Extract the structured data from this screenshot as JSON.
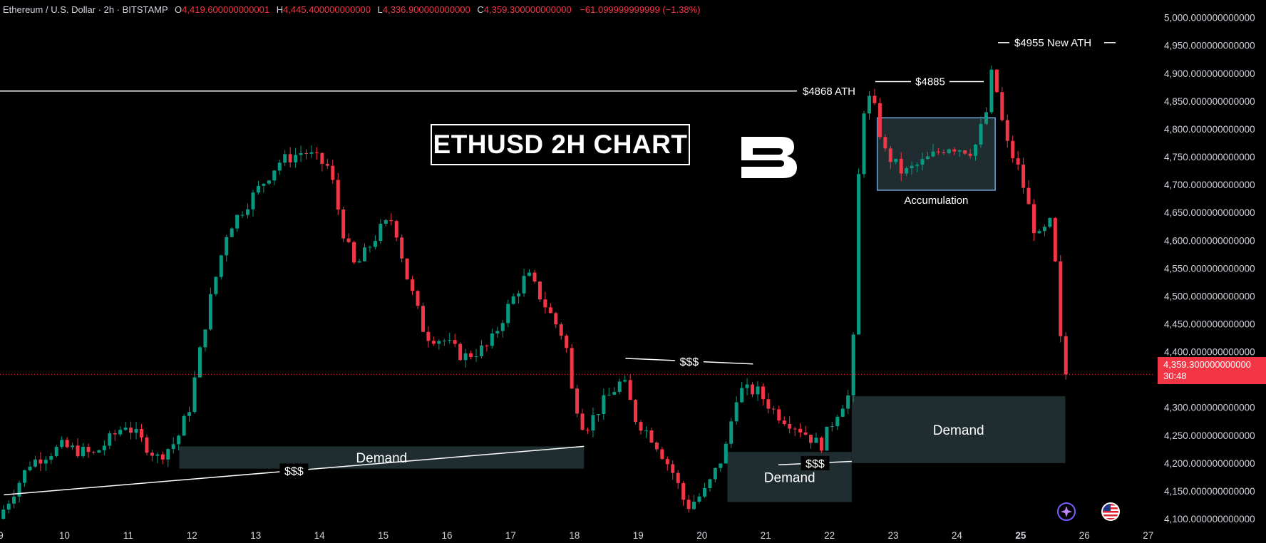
{
  "header": {
    "symbol": "Ethereum / U.S. Dollar · 2h · BITSTAMP",
    "o_label": "O",
    "o": "4,419.600000000001",
    "h_label": "H",
    "h": "4,445.400000000000",
    "l_label": "L",
    "l": "4,336.900000000000",
    "c_label": "C",
    "c": "4,359.300000000000",
    "change": "−61.099999999999 (−1.38%)"
  },
  "title": "ETHUSD 2H CHART",
  "price_tag": {
    "price": "4,359.300000000000",
    "timer": "30:48"
  },
  "colors": {
    "up": "#089981",
    "down": "#f23645",
    "zone": "#1f2c30",
    "accum_border": "#6fa8dc"
  },
  "icons": [
    "brand-b-logo-icon",
    "sparkle-icon",
    "us-flag-icon"
  ],
  "chart_data": {
    "type": "candlestick",
    "title": "ETHUSD 2H CHART",
    "ylim": [
      4080,
      5000
    ],
    "y_ticks": [
      "4,100.000000000000",
      "4,150.000000000000",
      "4,200.000000000000",
      "4,250.000000000000",
      "4,300.000000000000",
      "4,350.000000000000",
      "4,400.000000000000",
      "4,450.000000000000",
      "4,500.000000000000",
      "4,550.000000000000",
      "4,600.000000000000",
      "4,650.000000000000",
      "4,700.000000000000",
      "4,750.000000000000",
      "4,800.000000000000",
      "4,850.000000000000",
      "4,900.000000000000",
      "4,950.000000000000",
      "5,000.000000000000"
    ],
    "x_ticks": [
      "9",
      "10",
      "11",
      "12",
      "13",
      "14",
      "15",
      "16",
      "17",
      "18",
      "19",
      "20",
      "21",
      "22",
      "23",
      "24",
      "25",
      "26",
      "27"
    ],
    "x_tick_values": [
      9,
      10,
      11,
      12,
      13,
      14,
      15,
      16,
      17,
      18,
      19,
      20,
      21,
      22,
      23,
      24,
      25,
      26,
      27
    ],
    "xlim": [
      9,
      27.2
    ],
    "last_price": 4359.3,
    "price_path": [
      [
        9.0,
        4100
      ],
      [
        9.5,
        4200
      ],
      [
        10.0,
        4230
      ],
      [
        10.5,
        4215
      ],
      [
        11.0,
        4270
      ],
      [
        11.5,
        4210
      ],
      [
        11.8,
        4240
      ],
      [
        12.0,
        4300
      ],
      [
        12.3,
        4480
      ],
      [
        12.6,
        4620
      ],
      [
        13.0,
        4680
      ],
      [
        13.4,
        4740
      ],
      [
        13.8,
        4760
      ],
      [
        14.2,
        4730
      ],
      [
        14.4,
        4620
      ],
      [
        14.6,
        4550
      ],
      [
        15.0,
        4620
      ],
      [
        15.2,
        4640
      ],
      [
        15.4,
        4540
      ],
      [
        15.7,
        4430
      ],
      [
        16.0,
        4420
      ],
      [
        16.3,
        4390
      ],
      [
        16.7,
        4410
      ],
      [
        17.0,
        4480
      ],
      [
        17.3,
        4540
      ],
      [
        17.6,
        4480
      ],
      [
        17.9,
        4420
      ],
      [
        18.0,
        4330
      ],
      [
        18.2,
        4260
      ],
      [
        18.5,
        4310
      ],
      [
        18.8,
        4350
      ],
      [
        19.0,
        4280
      ],
      [
        19.3,
        4240
      ],
      [
        19.6,
        4180
      ],
      [
        19.8,
        4120
      ],
      [
        20.1,
        4150
      ],
      [
        20.4,
        4220
      ],
      [
        20.6,
        4330
      ],
      [
        20.9,
        4330
      ],
      [
        21.2,
        4290
      ],
      [
        21.6,
        4260
      ],
      [
        21.9,
        4230
      ],
      [
        22.2,
        4300
      ],
      [
        22.4,
        4330
      ],
      [
        22.45,
        4600
      ],
      [
        22.55,
        4830
      ],
      [
        22.7,
        4860
      ],
      [
        22.9,
        4760
      ],
      [
        23.2,
        4720
      ],
      [
        23.5,
        4740
      ],
      [
        23.9,
        4770
      ],
      [
        24.3,
        4760
      ],
      [
        24.5,
        4830
      ],
      [
        24.6,
        4910
      ],
      [
        24.8,
        4780
      ],
      [
        25.0,
        4730
      ],
      [
        25.1,
        4690
      ],
      [
        25.3,
        4600
      ],
      [
        25.5,
        4630
      ],
      [
        25.6,
        4540
      ],
      [
        25.7,
        4359.3
      ]
    ],
    "annotations": [
      {
        "text": "$4868 ATH",
        "price": 4868
      },
      {
        "text": "$4885",
        "price": 4885
      },
      {
        "text": "$4955 New ATH",
        "price": 4955
      },
      {
        "text": "Accumulation",
        "x": [
          22.75,
          24.6
        ],
        "y": [
          4690,
          4820
        ]
      },
      {
        "text": "Demand",
        "x": [
          11.8,
          18.15
        ],
        "y": [
          4190,
          4230
        ]
      },
      {
        "text": "Demand",
        "x": [
          20.4,
          22.35
        ],
        "y": [
          4130,
          4220
        ]
      },
      {
        "text": "Demand",
        "x": [
          22.35,
          25.7
        ],
        "y": [
          4200,
          4320
        ]
      },
      {
        "text": "$$$",
        "x": [
          9.05,
          18.15
        ],
        "y": [
          4143,
          4230
        ]
      },
      {
        "text": "$$$",
        "x": [
          18.8,
          20.8
        ],
        "y": [
          4388,
          4378
        ]
      },
      {
        "text": "$$$",
        "x": [
          21.2,
          22.35
        ],
        "y": [
          4197,
          4203
        ]
      }
    ]
  }
}
